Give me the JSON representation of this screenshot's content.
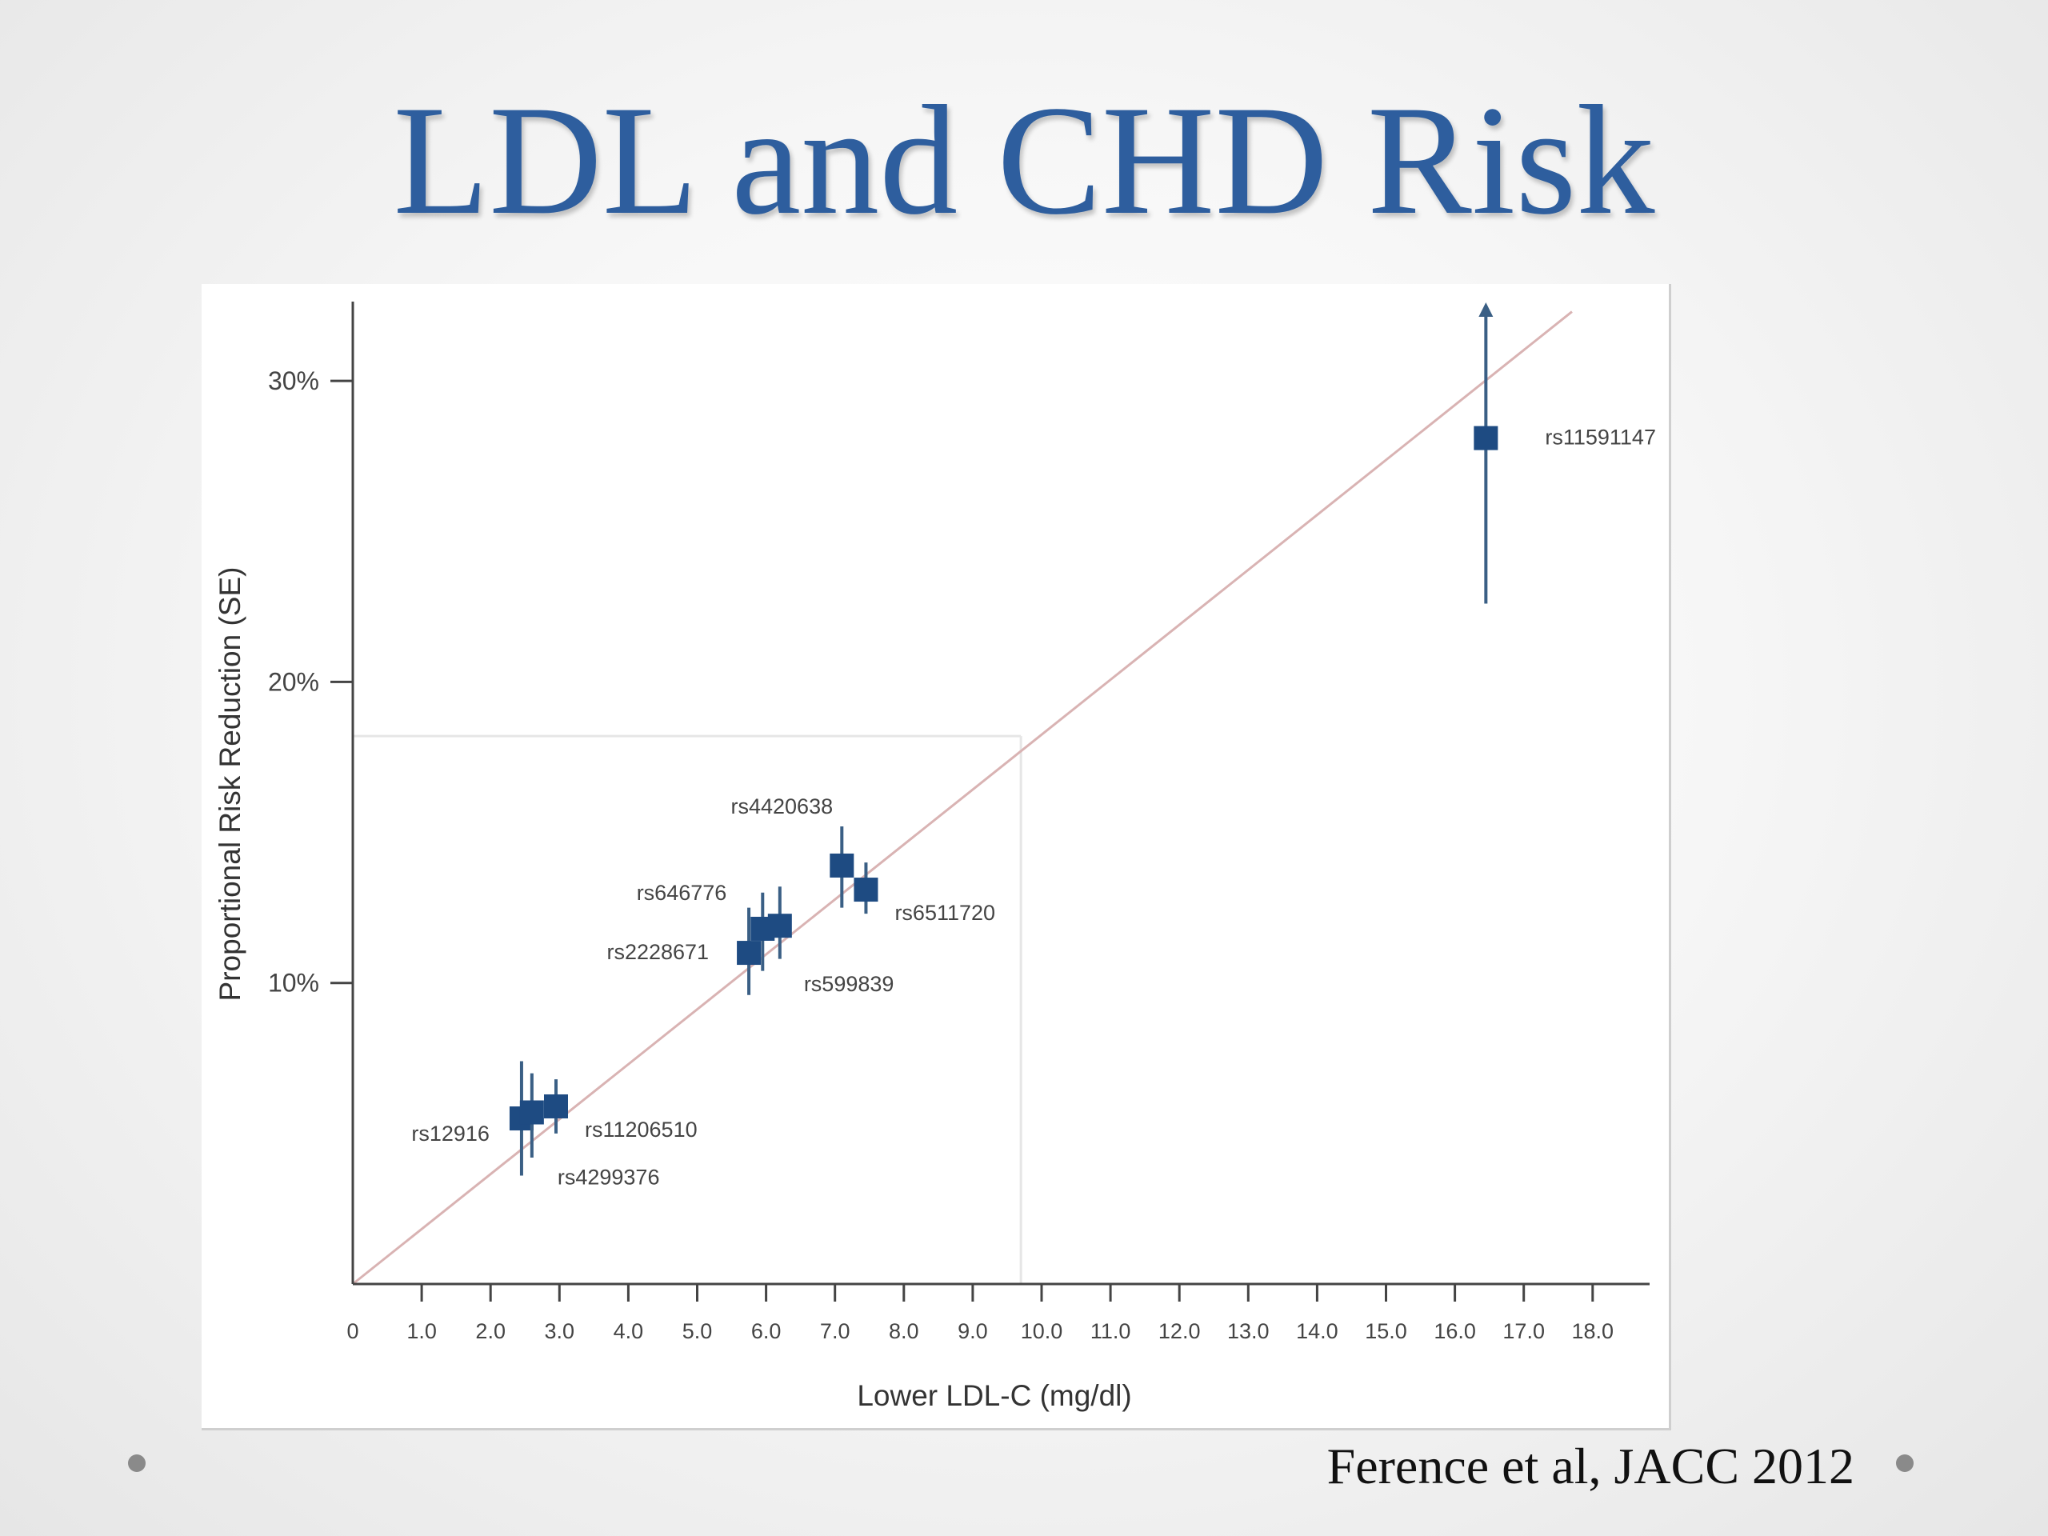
{
  "slide": {
    "title": "LDL and CHD Risk",
    "citation": "Ference et al, JACC 2012"
  },
  "colors": {
    "title": "#2e5e9e",
    "marker": "#1e4b82",
    "error_bar": "#3a5f85",
    "fit_line": "#d9b3b3",
    "reference_lines": "#e6e6e6",
    "axis": "#444444"
  },
  "chart_data": {
    "type": "scatter",
    "xlabel": "Lower LDL-C (mg/dl)",
    "ylabel": "Proportional Risk Reduction (SE)",
    "xlim": [
      0,
      18.8
    ],
    "ylim": [
      0,
      32.5
    ],
    "x_ticks": [
      0,
      1,
      2,
      3,
      4,
      5,
      6,
      7,
      8,
      9,
      10,
      11,
      12,
      13,
      14,
      15,
      16,
      17,
      18
    ],
    "x_tick_labels": [
      "0",
      "1.0",
      "2.0",
      "3.0",
      "4.0",
      "5.0",
      "6.0",
      "7.0",
      "8.0",
      "9.0",
      "10.0",
      "11.0",
      "12.0",
      "13.0",
      "14.0",
      "15.0",
      "16.0",
      "17.0",
      "18.0"
    ],
    "y_ticks": [
      10,
      20,
      30
    ],
    "y_tick_labels": [
      "10%",
      "20%",
      "30%"
    ],
    "fit_line": {
      "x": [
        0,
        17.7
      ],
      "y": [
        0,
        32.3
      ]
    },
    "reference_lines": {
      "x": 9.7,
      "y": 18.2
    },
    "grid": false,
    "legend": "none",
    "points": [
      {
        "label": "rs12916",
        "x": 2.45,
        "y": 5.5,
        "err_low": 3.6,
        "err_high": 7.4
      },
      {
        "label": "rs4299376",
        "x": 2.6,
        "y": 5.7,
        "err_low": 4.2,
        "err_high": 7.0
      },
      {
        "label": "rs11206510",
        "x": 2.95,
        "y": 5.9,
        "err_low": 5.0,
        "err_high": 6.8
      },
      {
        "label": "rs2228671",
        "x": 5.75,
        "y": 11.0,
        "err_low": 9.6,
        "err_high": 12.5
      },
      {
        "label": "rs646776",
        "x": 5.95,
        "y": 11.8,
        "err_low": 10.4,
        "err_high": 13.0
      },
      {
        "label": "rs599839",
        "x": 6.2,
        "y": 11.9,
        "err_low": 10.8,
        "err_high": 13.2
      },
      {
        "label": "rs4420638",
        "x": 7.1,
        "y": 13.9,
        "err_low": 12.5,
        "err_high": 15.2
      },
      {
        "label": "rs6511720",
        "x": 7.45,
        "y": 13.1,
        "err_low": 12.3,
        "err_high": 14.0
      },
      {
        "label": "rs11591147",
        "x": 16.45,
        "y": 28.1,
        "err_low": 22.6,
        "err_high": 32.5,
        "arrow_up": true
      }
    ]
  }
}
